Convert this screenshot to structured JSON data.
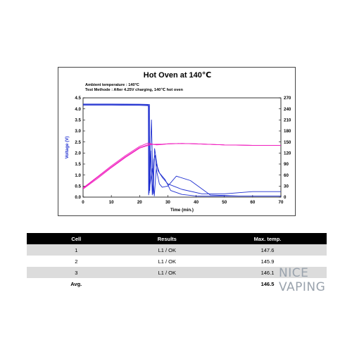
{
  "chart_data": {
    "type": "line",
    "title": "Hot Oven at 140℃",
    "annotations": [
      "Ambient temperature : 140°C",
      "Test Methode : After 4.25V charging, 140℃ hot oven"
    ],
    "xlabel": "Time (min.)",
    "ylabel": "Voltage (V)",
    "y2label": "Cell Temperature (℃)",
    "xlim": [
      0,
      70
    ],
    "ylim": [
      0,
      4.5
    ],
    "y2lim": [
      0,
      270
    ],
    "xticks": [
      "0",
      "10",
      "20",
      "30",
      "40",
      "50",
      "60",
      "70"
    ],
    "yticks": [
      "0.0",
      "0.5",
      "1.0",
      "1.5",
      "2.0",
      "2.5",
      "3.0",
      "3.5",
      "4.0",
      "4.5"
    ],
    "y2ticks": [
      "0",
      "30",
      "60",
      "90",
      "120",
      "150",
      "180",
      "210",
      "240",
      "270"
    ],
    "grid": false,
    "legend": "none",
    "colors": {
      "voltage": "#1f2fd0",
      "temperature": "#f01cbe"
    },
    "series": [
      {
        "axis": "left",
        "color": "#1f2fd0",
        "x": [
          0,
          10,
          20,
          23.5,
          23.6,
          24,
          24.5,
          25,
          25.5,
          26,
          27,
          28,
          30,
          33,
          38,
          45,
          55,
          65,
          70
        ],
        "y": [
          4.22,
          4.22,
          4.21,
          4.2,
          0.3,
          2.1,
          0.1,
          1.7,
          1.9,
          1.2,
          0.6,
          0.45,
          0.5,
          0.95,
          0.75,
          0.1,
          0.05,
          0.05,
          0.05
        ]
      },
      {
        "axis": "left",
        "color": "#1f2fd0",
        "x": [
          0,
          10,
          20,
          23.3,
          23.4,
          24.2,
          24.8,
          25.3,
          26.5,
          28,
          30,
          35,
          42,
          50,
          60,
          70
        ],
        "y": [
          4.17,
          4.17,
          4.16,
          4.15,
          0.2,
          3.5,
          0.15,
          2.2,
          1.2,
          0.9,
          0.6,
          0.35,
          0.15,
          0.15,
          0.25,
          0.25
        ]
      },
      {
        "axis": "left",
        "color": "#1f2fd0",
        "x": [
          0,
          10,
          20,
          23.1,
          23.2,
          24.5,
          25.2,
          26,
          27,
          29,
          31,
          35,
          40,
          50,
          70
        ],
        "y": [
          4.2,
          4.2,
          4.19,
          4.18,
          0.1,
          1.3,
          0.05,
          1.5,
          1.1,
          0.8,
          0.3,
          0.12,
          0.05,
          0.05,
          0.05
        ]
      },
      {
        "axis": "right",
        "color": "#f01cbe",
        "x": [
          0,
          5,
          10,
          15,
          20,
          23,
          25,
          27,
          30,
          35,
          40,
          50,
          60,
          70
        ],
        "y": [
          25,
          55,
          85,
          113,
          138,
          147,
          143,
          143,
          145,
          146,
          145,
          142,
          141,
          141
        ]
      },
      {
        "axis": "right",
        "color": "#f01cbe",
        "x": [
          0,
          5,
          10,
          15,
          20,
          24,
          26,
          28,
          30,
          35,
          40,
          50,
          60,
          70
        ],
        "y": [
          22,
          50,
          80,
          108,
          133,
          143,
          144,
          144,
          145,
          146,
          145,
          142,
          141,
          141
        ]
      },
      {
        "axis": "right",
        "color": "#f01cbe",
        "x": [
          0,
          5,
          10,
          15,
          20,
          24,
          26,
          28,
          30,
          35,
          40,
          50,
          60,
          70
        ],
        "y": [
          24,
          53,
          82,
          110,
          135,
          145,
          142,
          143,
          145,
          146,
          145,
          142,
          141,
          141
        ]
      }
    ]
  },
  "table": {
    "headers": [
      "Cell",
      "Results",
      "Max. temp."
    ],
    "rows": [
      [
        "1",
        "L1 / OK",
        "147.6"
      ],
      [
        "2",
        "L1 / OK",
        "145.9"
      ],
      [
        "3",
        "L1 / OK",
        "146.1"
      ]
    ],
    "avg_row": [
      "Avg.",
      "",
      "146.5"
    ]
  },
  "watermark": {
    "brand": "NICE VAPING",
    "text": "NiceVaping"
  }
}
